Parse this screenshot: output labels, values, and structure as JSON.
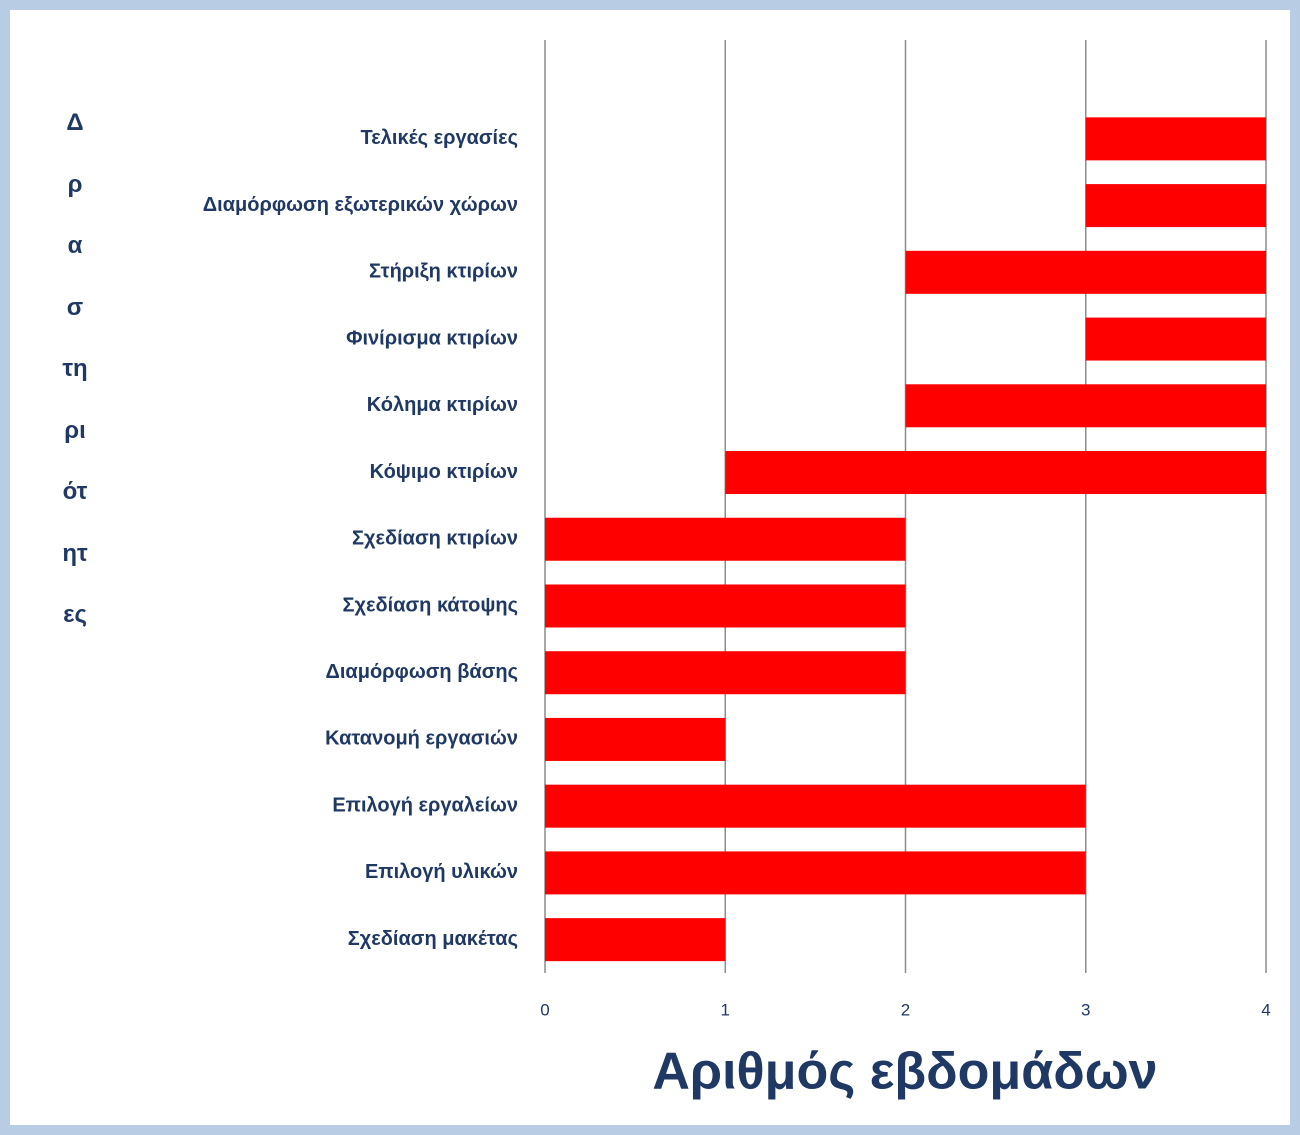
{
  "chart_data": {
    "type": "floating-bar",
    "orientation": "horizontal",
    "xlabel": "Αριθμός εβδομάδων",
    "ylabel": "Δραστηριότητες",
    "categories": [
      "Τελικές εργασίες",
      "Διαμόρφωση εξωτερικών χώρων",
      "Στήριξη κτιρίων ",
      "Φινίρισμα κτιρίων",
      "Κόλημα κτιρίων",
      "Κόψιμο κτιρίων",
      "Σχεδίαση κτιρίων",
      "Σχεδίαση κάτοψης",
      "Διαμόρφωση βάσης",
      "Κατανομή εργασιών",
      "Επιλογή εργαλείων ",
      "Επιλογή υλικών",
      "Σχεδίαση μακέτας"
    ],
    "ranges": [
      [
        3,
        4
      ],
      [
        3,
        4
      ],
      [
        2,
        4
      ],
      [
        3,
        4
      ],
      [
        2,
        4
      ],
      [
        1,
        4
      ],
      [
        0,
        2
      ],
      [
        0,
        2
      ],
      [
        0,
        2
      ],
      [
        0,
        1
      ],
      [
        0,
        3
      ],
      [
        0,
        3
      ],
      [
        0,
        1
      ]
    ],
    "color": "#ff0000",
    "xlim": [
      0,
      4
    ],
    "xticks": [
      0,
      1,
      2,
      3,
      4
    ],
    "grid": true
  }
}
